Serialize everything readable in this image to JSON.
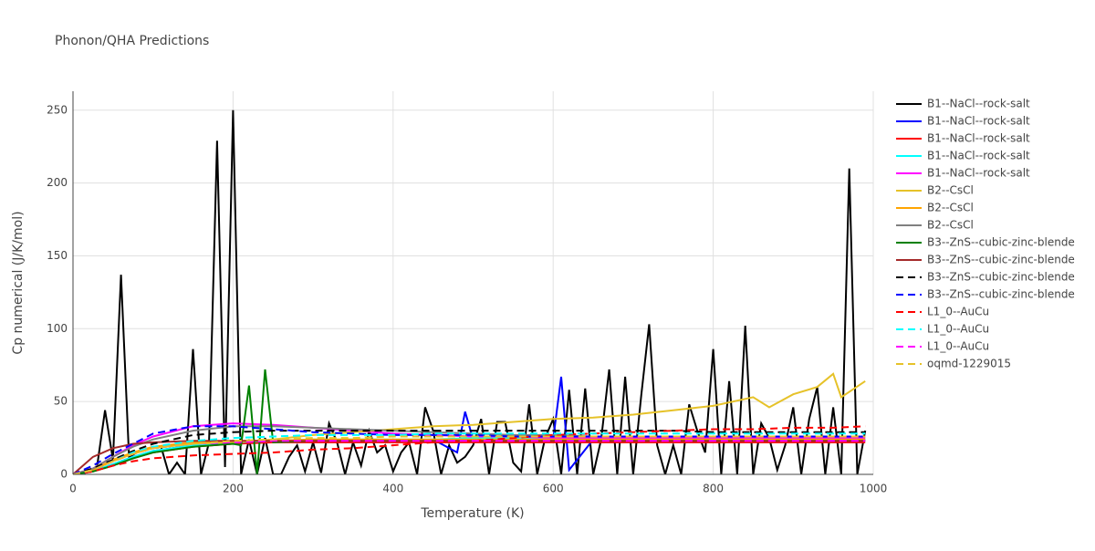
{
  "chart_data": {
    "type": "line",
    "title": "Phonon/QHA Predictions",
    "x_label": "Temperature (K)",
    "y_label": "Cp numerical (J/K/mol)",
    "xlim": [
      0,
      1000
    ],
    "xticks": [
      0,
      200,
      400,
      600,
      800,
      1000
    ],
    "ylim": [
      0,
      263
    ],
    "yticks": [
      0,
      50,
      100,
      150,
      200,
      250
    ],
    "grid": true,
    "series": [
      {
        "name": "B1--NaCl--rock-salt",
        "color": "#000000",
        "dash": "solid",
        "x": [
          0,
          10,
          20,
          30,
          40,
          50,
          60,
          70,
          80,
          90,
          100,
          110,
          120,
          130,
          140,
          150,
          160,
          170,
          180,
          190,
          200,
          210,
          220,
          230,
          240,
          250,
          260,
          270,
          280,
          290,
          300,
          310,
          320,
          330,
          340,
          350,
          360,
          370,
          380,
          390,
          400,
          410,
          420,
          430,
          440,
          450,
          460,
          470,
          480,
          490,
          500,
          510,
          520,
          530,
          540,
          550,
          560,
          570,
          580,
          590,
          600,
          610,
          620,
          630,
          640,
          650,
          660,
          670,
          680,
          690,
          700,
          710,
          720,
          730,
          740,
          750,
          760,
          770,
          780,
          790,
          800,
          810,
          820,
          830,
          840,
          850,
          860,
          870,
          880,
          890,
          900,
          910,
          920,
          930,
          940,
          950,
          960,
          970,
          980,
          990
        ],
        "values": [
          0,
          0,
          2,
          5,
          44,
          10,
          137,
          12,
          15,
          17,
          18,
          19,
          0,
          8,
          0,
          86,
          0,
          22,
          229,
          5,
          250,
          0,
          24,
          0,
          25,
          0,
          0,
          12,
          20,
          2,
          22,
          1,
          35,
          22,
          0,
          22,
          6,
          30,
          15,
          20,
          2,
          15,
          22,
          0,
          46,
          30,
          0,
          20,
          8,
          12,
          20,
          38,
          0,
          36,
          36,
          8,
          2,
          48,
          0,
          25,
          38,
          0,
          58,
          0,
          59,
          0,
          24,
          72,
          0,
          67,
          0,
          54,
          103,
          20,
          0,
          20,
          0,
          48,
          30,
          15,
          86,
          0,
          64,
          0,
          102,
          0,
          35,
          25,
          3,
          20,
          46,
          0,
          38,
          60,
          0,
          46,
          0,
          210,
          0,
          30
        ]
      },
      {
        "name": "B1--NaCl--rock-salt",
        "color": "#0000ff",
        "dash": "solid",
        "x": [
          0,
          25,
          50,
          75,
          100,
          150,
          200,
          250,
          300,
          350,
          400,
          450,
          480,
          490,
          500,
          550,
          600,
          610,
          620,
          650,
          700,
          750,
          800,
          850,
          900,
          950,
          990
        ],
        "values": [
          0,
          2,
          7,
          12,
          16,
          20,
          22,
          23,
          23,
          23,
          23,
          24,
          15,
          43,
          24,
          24,
          24,
          67,
          3,
          24,
          24,
          24,
          24,
          24,
          24,
          24,
          24
        ]
      },
      {
        "name": "B1--NaCl--rock-salt",
        "color": "#ff0000",
        "dash": "solid",
        "x": [
          0,
          25,
          50,
          75,
          100,
          150,
          200,
          250,
          300,
          350,
          400,
          450,
          500,
          550,
          600,
          650,
          700,
          750,
          800,
          850,
          900,
          950,
          990
        ],
        "values": [
          0,
          2,
          6,
          11,
          15,
          19,
          21,
          22,
          22,
          22,
          22,
          22,
          22,
          22,
          22,
          22,
          22,
          22,
          22,
          22,
          22,
          22,
          22
        ]
      },
      {
        "name": "B1--NaCl--rock-salt",
        "color": "#00ffff",
        "dash": "solid",
        "x": [
          0,
          25,
          50,
          75,
          100,
          150,
          200,
          250,
          300,
          350,
          400,
          450,
          500,
          550,
          600,
          650,
          700,
          750,
          800,
          850,
          900,
          950,
          990
        ],
        "values": [
          0,
          2,
          7,
          12,
          16,
          20,
          22,
          23,
          24,
          24,
          24,
          24,
          25,
          25,
          25,
          25,
          25,
          25,
          25,
          25,
          25,
          25,
          25
        ]
      },
      {
        "name": "B1--NaCl--rock-salt",
        "color": "#ff00ff",
        "dash": "solid",
        "x": [
          0,
          25,
          50,
          75,
          100,
          150,
          200,
          250,
          300,
          350,
          400,
          450,
          500,
          550,
          600,
          650,
          700,
          750,
          800,
          850,
          900,
          950,
          990
        ],
        "values": [
          0,
          4,
          12,
          20,
          26,
          33,
          35,
          34,
          32,
          30,
          28,
          27,
          26,
          26,
          25,
          25,
          25,
          25,
          25,
          25,
          25,
          25,
          25
        ]
      },
      {
        "name": "B2--CsCl",
        "color": "#e6c229",
        "dash": "solid",
        "x": [
          0,
          25,
          50,
          75,
          100,
          150,
          200,
          250,
          300,
          350,
          400,
          450,
          500,
          550,
          600,
          650,
          700,
          750,
          800,
          850,
          870,
          900,
          930,
          950,
          960,
          990
        ],
        "values": [
          0,
          3,
          9,
          14,
          18,
          21,
          22,
          24,
          27,
          29,
          31,
          33,
          34,
          36,
          38,
          39,
          41,
          44,
          47,
          53,
          46,
          55,
          60,
          69,
          53,
          64
        ]
      },
      {
        "name": "B2--CsCl",
        "color": "#ffa500",
        "dash": "solid",
        "x": [
          0,
          25,
          50,
          75,
          100,
          150,
          200,
          250,
          300,
          350,
          400,
          450,
          500,
          550,
          600,
          650,
          700,
          750,
          800,
          850,
          900,
          950,
          990
        ],
        "values": [
          0,
          3,
          10,
          15,
          19,
          22,
          23,
          23,
          24,
          24,
          24,
          24,
          24,
          24,
          24,
          24,
          24,
          24,
          24,
          24,
          24,
          24,
          24
        ]
      },
      {
        "name": "B2--CsCl",
        "color": "#808080",
        "dash": "solid",
        "x": [
          0,
          25,
          50,
          75,
          100,
          150,
          200,
          250,
          300,
          350,
          400,
          450,
          500,
          550,
          600,
          650,
          700,
          750,
          800,
          850,
          900,
          950,
          990
        ],
        "values": [
          0,
          4,
          12,
          19,
          24,
          30,
          33,
          33,
          32,
          31,
          30,
          29,
          28,
          27,
          27,
          26,
          26,
          26,
          26,
          26,
          26,
          26,
          26
        ]
      },
      {
        "name": "B3--ZnS--cubic-zinc-blende",
        "color": "#008000",
        "dash": "solid",
        "x": [
          0,
          25,
          50,
          75,
          100,
          150,
          200,
          210,
          220,
          230,
          240,
          250,
          300,
          350,
          400,
          450,
          500,
          550,
          600,
          650,
          700,
          750,
          800,
          850,
          900,
          950,
          990
        ],
        "values": [
          0,
          2,
          6,
          11,
          15,
          19,
          21,
          20,
          61,
          0,
          72,
          22,
          23,
          23,
          23,
          23,
          23,
          23,
          23,
          23,
          23,
          23,
          23,
          23,
          23,
          23,
          23
        ]
      },
      {
        "name": "B3--ZnS--cubic-zinc-blende",
        "color": "#a52a2a",
        "dash": "solid",
        "x": [
          0,
          25,
          50,
          75,
          100,
          150,
          200,
          250,
          300,
          350,
          400,
          450,
          500,
          550,
          600,
          650,
          700,
          750,
          800,
          850,
          900,
          950,
          990
        ],
        "values": [
          0,
          12,
          18,
          21,
          22,
          23,
          23,
          23,
          23,
          23,
          23,
          23,
          23,
          23,
          23,
          23,
          23,
          23,
          23,
          23,
          23,
          23,
          23
        ]
      },
      {
        "name": "B3--ZnS--cubic-zinc-blende",
        "color": "#000000",
        "dash": "dash",
        "x": [
          0,
          25,
          50,
          75,
          100,
          150,
          200,
          250,
          300,
          350,
          400,
          450,
          500,
          550,
          600,
          650,
          700,
          750,
          800,
          850,
          900,
          950,
          990
        ],
        "values": [
          0,
          4,
          10,
          16,
          21,
          27,
          29,
          30,
          30,
          30,
          30,
          30,
          30,
          30,
          30,
          30,
          30,
          30,
          29,
          29,
          29,
          29,
          29
        ]
      },
      {
        "name": "B3--ZnS--cubic-zinc-blende",
        "color": "#0000ff",
        "dash": "dash",
        "x": [
          0,
          25,
          50,
          75,
          100,
          150,
          200,
          250,
          300,
          350,
          400,
          450,
          500,
          550,
          600,
          650,
          700,
          750,
          800,
          850,
          900,
          950,
          990
        ],
        "values": [
          0,
          6,
          14,
          21,
          28,
          33,
          33,
          31,
          29,
          28,
          27,
          27,
          27,
          26,
          26,
          26,
          26,
          26,
          26,
          26,
          26,
          26,
          26
        ]
      },
      {
        "name": "L1_0--AuCu",
        "color": "#ff0000",
        "dash": "dash",
        "x": [
          0,
          25,
          50,
          75,
          100,
          150,
          200,
          250,
          300,
          350,
          400,
          450,
          500,
          550,
          600,
          650,
          700,
          750,
          800,
          850,
          900,
          950,
          990
        ],
        "values": [
          0,
          2,
          6,
          9,
          11,
          13,
          14,
          15,
          17,
          18,
          20,
          22,
          23,
          25,
          27,
          28,
          29,
          30,
          31,
          31,
          32,
          32,
          33
        ]
      },
      {
        "name": "L1_0--AuCu",
        "color": "#00ffff",
        "dash": "dash",
        "x": [
          0,
          25,
          50,
          75,
          100,
          150,
          200,
          250,
          300,
          350,
          400,
          450,
          500,
          550,
          600,
          650,
          700,
          750,
          800,
          850,
          900,
          950,
          990
        ],
        "values": [
          0,
          3,
          9,
          15,
          19,
          23,
          25,
          26,
          27,
          27,
          27,
          28,
          28,
          28,
          28,
          28,
          28,
          28,
          28,
          28,
          28,
          28,
          28
        ]
      },
      {
        "name": "L1_0--AuCu",
        "color": "#ff00ff",
        "dash": "dash",
        "x": [
          0,
          25,
          50,
          75,
          100,
          150,
          200,
          250,
          300,
          350,
          400,
          450,
          500,
          550,
          600,
          650,
          700,
          750,
          800,
          850,
          900,
          950,
          990
        ],
        "values": [
          0,
          3,
          9,
          14,
          18,
          21,
          22,
          23,
          23,
          23,
          23,
          23,
          23,
          23,
          23,
          23,
          23,
          23,
          23,
          23,
          23,
          23,
          23
        ]
      },
      {
        "name": "oqmd-1229015",
        "color": "#e6c229",
        "dash": "dash",
        "x": [
          0,
          25,
          50,
          75,
          100,
          150,
          200,
          250,
          300,
          350,
          400,
          450,
          500,
          550,
          600,
          650,
          700,
          750,
          800,
          850,
          900,
          950,
          990
        ],
        "values": [
          0,
          3,
          9,
          14,
          18,
          21,
          23,
          24,
          25,
          25,
          26,
          26,
          26,
          26,
          26,
          26,
          26,
          26,
          26,
          26,
          26,
          26,
          26
        ]
      }
    ]
  }
}
